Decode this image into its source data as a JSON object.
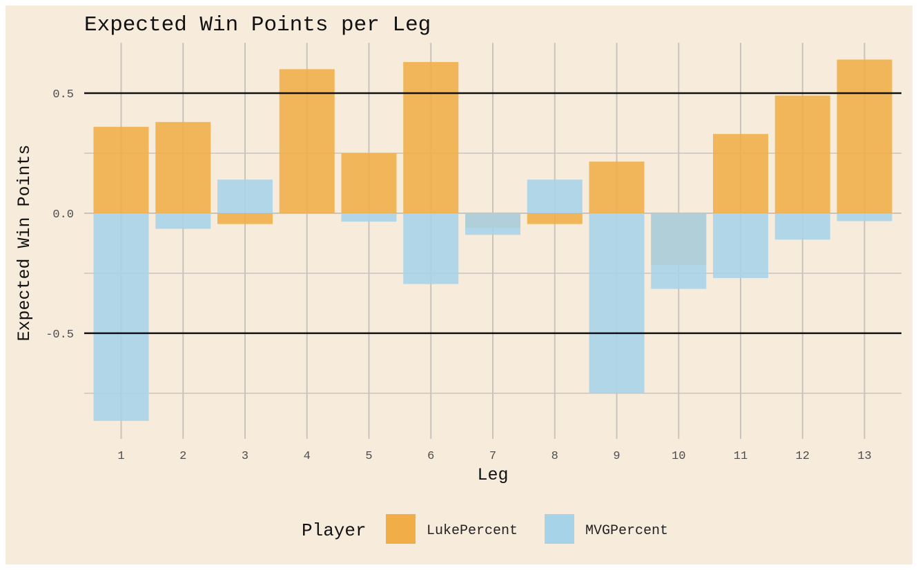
{
  "chart_data": {
    "type": "bar",
    "title": "Expected Win Points per Leg",
    "xlabel": "Leg",
    "ylabel": "Expected Win Points",
    "categories": [
      "1",
      "2",
      "3",
      "4",
      "5",
      "6",
      "7",
      "8",
      "9",
      "10",
      "11",
      "12",
      "13"
    ],
    "series": [
      {
        "name": "LukePercent",
        "color": "#f0ad48",
        "values": [
          0.36,
          0.38,
          -0.045,
          0.6,
          0.25,
          0.63,
          -0.06,
          -0.045,
          0.215,
          -0.215,
          0.33,
          0.49,
          0.64
        ]
      },
      {
        "name": "MVGPercent",
        "color": "#a7d3e9",
        "values": [
          -0.865,
          -0.065,
          0.14,
          0.0,
          -0.035,
          -0.295,
          -0.09,
          0.14,
          -0.75,
          -0.315,
          -0.27,
          -0.11,
          -0.033
        ]
      }
    ],
    "ylim": [
      -0.94,
      0.71
    ],
    "yticks": [
      -0.5,
      0.0,
      0.5
    ],
    "ytick_labels": [
      "-0.5",
      "0.0",
      "0.5"
    ],
    "minor_yticks": [
      -0.75,
      -0.25,
      0.25
    ],
    "reference_lines": [
      -0.5,
      0.5
    ],
    "grid": true,
    "legend": {
      "title": "Player",
      "position": "bottom"
    },
    "background_color": "#f7ecdb",
    "gridline_color": "#c8c4bd",
    "reference_line_color": "#111111"
  }
}
